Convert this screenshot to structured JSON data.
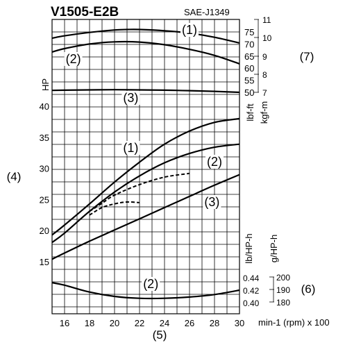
{
  "chart_data": {
    "type": "line",
    "title": "V1505-E2B",
    "standard": "SAE-J1349",
    "xlabel": "min-1 (rpm) x 100",
    "xlim": [
      15,
      30
    ],
    "x_ticks": [
      "16",
      "18",
      "20",
      "22",
      "24",
      "26",
      "28",
      "30"
    ],
    "panels": {
      "torque": {
        "axis_left_ticks": [
          "75",
          "70",
          "65",
          "60",
          "55",
          "50"
        ],
        "axis_left_unit": "lbf-ft",
        "axis_right_ticks": [
          "11",
          "10",
          "9",
          "8",
          "7"
        ],
        "axis_right_unit": "kgf-m",
        "label_ref": "(7)",
        "series": [
          {
            "name": "(1)",
            "x": [
              15,
              16,
              18,
              20,
              21,
              22,
              24,
              26,
              28,
              30
            ],
            "y": [
              72.4,
              73.4,
              74.8,
              75.8,
              76.0,
              76.0,
              75.5,
              74.5,
              72.8,
              70.4
            ]
          },
          {
            "name": "(2)",
            "x": [
              15,
              16,
              18,
              20,
              22,
              24,
              26,
              28,
              30
            ],
            "y": [
              66.7,
              68.1,
              70.0,
              70.9,
              70.8,
              69.7,
              67.8,
              65.3,
              61.8
            ]
          },
          {
            "name": "(3)",
            "x": [
              15,
              16,
              18,
              20,
              22,
              24,
              26,
              28,
              30
            ],
            "y": [
              50.8,
              50.9,
              51.0,
              51.1,
              51.0,
              50.9,
              50.7,
              50.4,
              50.0
            ]
          }
        ]
      },
      "power": {
        "axis_left_label": "HP",
        "axis_left_ticks": [
          "40",
          "35",
          "30",
          "25",
          "20",
          "15"
        ],
        "label_ref": "(4)",
        "series": [
          {
            "name": "(1)",
            "x": [
              15,
              16,
              18,
              20,
              22,
              24,
              26,
              28,
              30
            ],
            "y": [
              19.3,
              20.9,
              24.3,
              27.8,
              31.0,
              33.9,
              36.0,
              37.4,
              38.0
            ]
          },
          {
            "name": "(2)",
            "x": [
              15,
              16,
              18,
              20,
              22,
              24,
              26,
              28,
              30
            ],
            "y": [
              18.1,
              19.6,
              23.1,
              26.2,
              28.8,
              30.9,
              32.4,
              33.4,
              33.9
            ]
          },
          {
            "name": "(3)",
            "x": [
              15,
              16,
              18,
              20,
              22,
              24,
              26,
              28,
              30
            ],
            "y": [
              15.4,
              16.4,
              18.3,
              20.1,
              21.9,
              23.7,
              25.5,
              27.3,
              29.0
            ]
          },
          {
            "name": "dashed-upper",
            "dashed": true,
            "x": [
              18,
              19,
              20,
              22,
              24,
              26
            ],
            "y": [
              23.1,
              24.4,
              25.7,
              27.4,
              28.6,
              29.2
            ]
          },
          {
            "name": "dashed-lower",
            "dashed": true,
            "x": [
              18,
              19,
              20,
              21,
              22
            ],
            "y": [
              22.5,
              23.7,
              24.3,
              24.6,
              24.5
            ]
          }
        ]
      },
      "fuel": {
        "axis_left_ticks": [
          "0.44",
          "0.42",
          "0.40"
        ],
        "axis_left_unit": "lb/HP-h",
        "axis_right_ticks": [
          "200",
          "190",
          "180"
        ],
        "axis_right_unit": "g/HP-h",
        "label_ref": "(6)",
        "series": [
          {
            "name": "(2)",
            "x": [
              15,
              16,
              18,
              20,
              22,
              24,
              26,
              28,
              30
            ],
            "y": [
              0.432,
              0.428,
              0.417,
              0.41,
              0.407,
              0.407,
              0.409,
              0.413,
              0.42
            ]
          }
        ]
      }
    },
    "x_label_ref": "(5)"
  }
}
